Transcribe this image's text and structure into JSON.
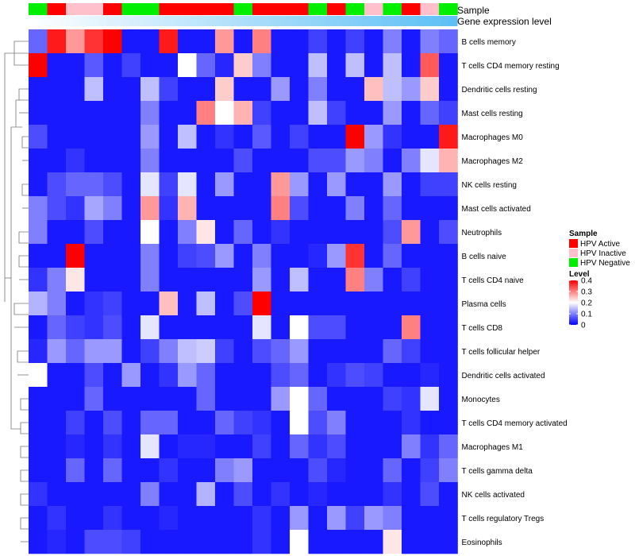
{
  "chart_data": {
    "type": "heatmap",
    "annotation_labels": [
      "Sample",
      "Gene expression level"
    ],
    "sample_groups": [
      "Negative",
      "Active",
      "Inactive",
      "Inactive",
      "Active",
      "Negative",
      "Negative",
      "Active",
      "Active",
      "Active",
      "Active",
      "Negative",
      "Active",
      "Active",
      "Active",
      "Negative",
      "Active",
      "Negative",
      "Inactive",
      "Negative",
      "Active",
      "Inactive",
      "Negative"
    ],
    "sample_colors": {
      "Active": "#ff0000",
      "Inactive": "#ffc0cb",
      "Negative": "#00ee00"
    },
    "expression_bar_colors": [
      "#ffffff",
      "#5bbff5"
    ],
    "rows": [
      "B cells memory",
      "T cells CD4 memory resting",
      "Dendritic cells resting",
      "Mast cells resting",
      "Macrophages M0",
      "Macrophages M2",
      "NK cells resting",
      "Mast cells activated",
      "Neutrophils",
      "B cells naive",
      "T cells CD4 naive",
      "Plasma cells",
      "T cells CD8",
      "T cells follicular helper",
      "Dendritic cells activated",
      "Monocytes",
      "T cells CD4 memory activated",
      "Macrophages M1",
      "T cells gamma delta",
      "NK cells activated",
      "T cells regulatory  Tregs",
      "Eosinophils"
    ],
    "values": [
      [
        0.08,
        0.38,
        0.28,
        0.36,
        0.4,
        0.02,
        0.02,
        0.38,
        0.02,
        0.02,
        0.28,
        0.02,
        0.3,
        0.02,
        0.02,
        0.05,
        0.02,
        0.05,
        0.02,
        0.1,
        0.02,
        0.1,
        0.08
      ],
      [
        0.4,
        0.02,
        0.02,
        0.07,
        0.02,
        0.05,
        0.02,
        0.02,
        0.2,
        0.08,
        0.03,
        0.24,
        0.1,
        0.02,
        0.02,
        0.15,
        0.02,
        0.15,
        0.02,
        0.15,
        0.02,
        0.33,
        0.02
      ],
      [
        0.02,
        0.02,
        0.02,
        0.15,
        0.02,
        0.02,
        0.15,
        0.05,
        0.02,
        0.02,
        0.24,
        0.02,
        0.02,
        0.12,
        0.02,
        0.1,
        0.02,
        0.02,
        0.25,
        0.15,
        0.12,
        0.24,
        0.02
      ],
      [
        0.02,
        0.02,
        0.02,
        0.02,
        0.02,
        0.02,
        0.1,
        0.02,
        0.02,
        0.3,
        0.2,
        0.26,
        0.05,
        0.02,
        0.02,
        0.15,
        0.05,
        0.02,
        0.02,
        0.12,
        0.02,
        0.08,
        0.05
      ],
      [
        0.06,
        0.02,
        0.02,
        0.02,
        0.02,
        0.02,
        0.12,
        0.02,
        0.15,
        0.02,
        0.04,
        0.02,
        0.07,
        0.02,
        0.05,
        0.02,
        0.02,
        0.4,
        0.12,
        0.04,
        0.02,
        0.02,
        0.38
      ],
      [
        0.02,
        0.02,
        0.04,
        0.02,
        0.02,
        0.02,
        0.1,
        0.02,
        0.02,
        0.02,
        0.02,
        0.06,
        0.02,
        0.02,
        0.02,
        0.06,
        0.06,
        0.12,
        0.1,
        0.02,
        0.1,
        0.18,
        0.26
      ],
      [
        0.02,
        0.06,
        0.08,
        0.08,
        0.06,
        0.02,
        0.18,
        0.05,
        0.18,
        0.02,
        0.12,
        0.02,
        0.02,
        0.28,
        0.12,
        0.02,
        0.12,
        0.02,
        0.02,
        0.12,
        0.02,
        0.05,
        0.05
      ],
      [
        0.1,
        0.06,
        0.04,
        0.13,
        0.1,
        0.02,
        0.28,
        0.04,
        0.26,
        0.02,
        0.02,
        0.02,
        0.02,
        0.3,
        0.06,
        0.02,
        0.02,
        0.1,
        0.02,
        0.08,
        0.02,
        0.02,
        0.02
      ],
      [
        0.1,
        0.02,
        0.02,
        0.06,
        0.02,
        0.02,
        0.2,
        0.02,
        0.1,
        0.22,
        0.02,
        0.08,
        0.02,
        0.04,
        0.02,
        0.02,
        0.02,
        0.02,
        0.02,
        0.06,
        0.28,
        0.02,
        0.06
      ],
      [
        0.02,
        0.02,
        0.4,
        0.02,
        0.02,
        0.02,
        0.1,
        0.02,
        0.05,
        0.06,
        0.12,
        0.02,
        0.1,
        0.02,
        0.02,
        0.03,
        0.12,
        0.36,
        0.02,
        0.08,
        0.02,
        0.02,
        0.02
      ],
      [
        0.04,
        0.1,
        0.22,
        0.02,
        0.02,
        0.02,
        0.1,
        0.02,
        0.02,
        0.02,
        0.02,
        0.02,
        0.12,
        0.02,
        0.15,
        0.02,
        0.02,
        0.3,
        0.1,
        0.02,
        0.05,
        0.02,
        0.02
      ],
      [
        0.14,
        0.1,
        0.02,
        0.04,
        0.05,
        0.02,
        0.02,
        0.25,
        0.02,
        0.15,
        0.02,
        0.06,
        0.4,
        0.02,
        0.02,
        0.02,
        0.02,
        0.02,
        0.02,
        0.02,
        0.02,
        0.02,
        0.02
      ],
      [
        0.02,
        0.08,
        0.05,
        0.04,
        0.06,
        0.02,
        0.18,
        0.02,
        0.02,
        0.02,
        0.02,
        0.02,
        0.18,
        0.02,
        0.2,
        0.06,
        0.06,
        0.02,
        0.02,
        0.02,
        0.3,
        0.02,
        0.02
      ],
      [
        0.03,
        0.12,
        0.08,
        0.12,
        0.12,
        0.02,
        0.05,
        0.1,
        0.15,
        0.16,
        0.05,
        0.02,
        0.06,
        0.08,
        0.12,
        0.02,
        0.02,
        0.02,
        0.02,
        0.08,
        0.05,
        0.02,
        0.02
      ],
      [
        0.2,
        0.02,
        0.02,
        0.06,
        0.02,
        0.12,
        0.02,
        0.04,
        0.12,
        0.08,
        0.02,
        0.02,
        0.02,
        0.06,
        0.08,
        0.02,
        0.04,
        0.06,
        0.05,
        0.02,
        0.02,
        0.03,
        0.02
      ],
      [
        0.02,
        0.02,
        0.02,
        0.08,
        0.02,
        0.02,
        0.02,
        0.02,
        0.02,
        0.08,
        0.02,
        0.02,
        0.02,
        0.12,
        0.2,
        0.08,
        0.02,
        0.02,
        0.02,
        0.05,
        0.04,
        0.18,
        0.02
      ],
      [
        0.02,
        0.02,
        0.05,
        0.02,
        0.06,
        0.02,
        0.08,
        0.08,
        0.02,
        0.02,
        0.08,
        0.05,
        0.04,
        0.02,
        0.2,
        0.06,
        0.1,
        0.02,
        0.02,
        0.02,
        0.04,
        0.02,
        0.02
      ],
      [
        0.02,
        0.02,
        0.03,
        0.02,
        0.04,
        0.02,
        0.18,
        0.02,
        0.03,
        0.03,
        0.02,
        0.02,
        0.05,
        0.02,
        0.08,
        0.04,
        0.06,
        0.02,
        0.02,
        0.02,
        0.1,
        0.04,
        0.08
      ],
      [
        0.02,
        0.02,
        0.08,
        0.02,
        0.08,
        0.02,
        0.02,
        0.04,
        0.02,
        0.02,
        0.1,
        0.12,
        0.02,
        0.02,
        0.02,
        0.06,
        0.03,
        0.02,
        0.02,
        0.08,
        0.02,
        0.05,
        0.1
      ],
      [
        0.04,
        0.02,
        0.02,
        0.02,
        0.02,
        0.02,
        0.1,
        0.02,
        0.02,
        0.14,
        0.02,
        0.06,
        0.02,
        0.04,
        0.02,
        0.03,
        0.02,
        0.02,
        0.02,
        0.04,
        0.02,
        0.06,
        0.02
      ],
      [
        0.02,
        0.04,
        0.02,
        0.02,
        0.04,
        0.02,
        0.02,
        0.03,
        0.02,
        0.02,
        0.02,
        0.02,
        0.04,
        0.02,
        0.12,
        0.02,
        0.12,
        0.05,
        0.12,
        0.1,
        0.02,
        0.02,
        0.02
      ],
      [
        0.02,
        0.03,
        0.02,
        0.06,
        0.06,
        0.05,
        0.02,
        0.02,
        0.02,
        0.02,
        0.02,
        0.02,
        0.04,
        0.02,
        0.2,
        0.02,
        0.02,
        0.02,
        0.02,
        0.22,
        0.02,
        0.02,
        0.02
      ]
    ],
    "legend": {
      "sample_title": "Sample",
      "sample_items": [
        {
          "label": "HPV Active",
          "color": "#ff0000"
        },
        {
          "label": "HPV Inactive",
          "color": "#ffc0cb"
        },
        {
          "label": "HPV Negative",
          "color": "#00ee00"
        }
      ],
      "level_title": "Level",
      "level_ticks": [
        "0.4",
        "0.3",
        "0.2",
        "0.1",
        "0"
      ],
      "level_range": [
        0,
        0.4
      ]
    }
  }
}
